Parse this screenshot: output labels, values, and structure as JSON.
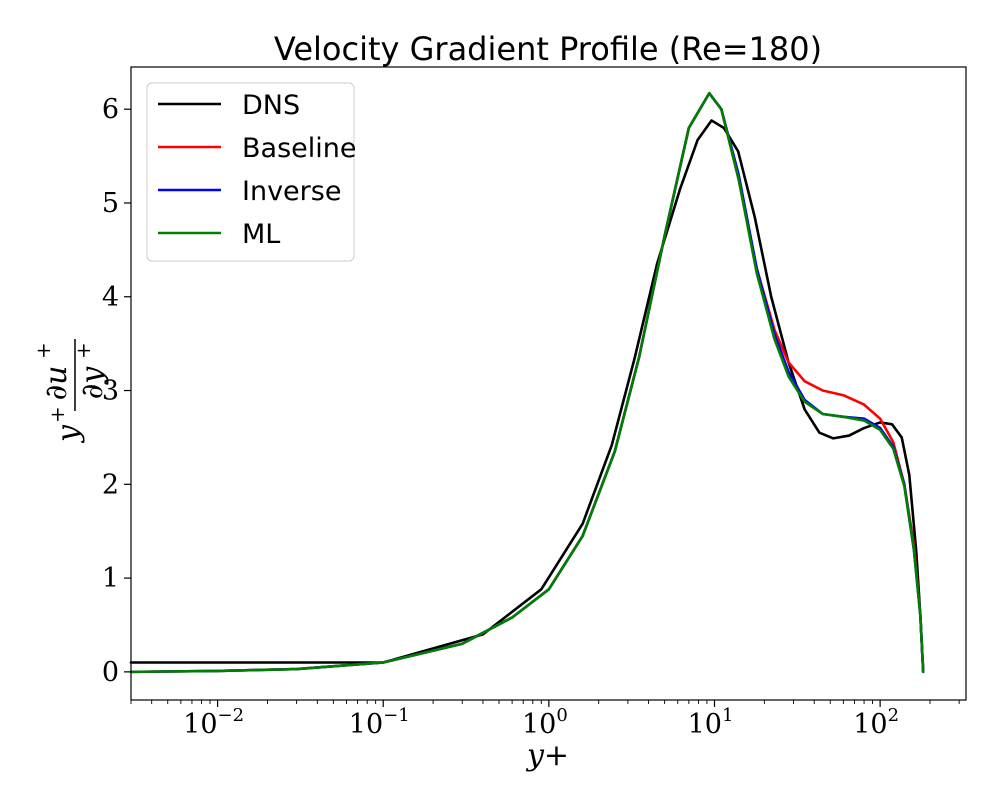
{
  "chart_data": {
    "type": "line",
    "title": "Velocity Gradient Profile (Re=180)",
    "xlabel": "y+",
    "ylabel_parts": {
      "y": "y",
      "sup1": "+",
      "num": "∂u",
      "sup2": "+",
      "den": "∂y",
      "sup3": "+"
    },
    "xscale": "log",
    "xlim": [
      0.003,
      330
    ],
    "ylim": [
      -0.3,
      6.45
    ],
    "x_ticks": [
      {
        "value": 0.01,
        "base": "10",
        "exp": "−2"
      },
      {
        "value": 0.1,
        "base": "10",
        "exp": "−1"
      },
      {
        "value": 1,
        "base": "10",
        "exp": "0"
      },
      {
        "value": 10,
        "base": "10",
        "exp": "1"
      },
      {
        "value": 100,
        "base": "10",
        "exp": "2"
      }
    ],
    "y_ticks": [
      {
        "value": 0,
        "label": "0"
      },
      {
        "value": 1,
        "label": "1"
      },
      {
        "value": 2,
        "label": "2"
      },
      {
        "value": 3,
        "label": "3"
      },
      {
        "value": 4,
        "label": "4"
      },
      {
        "value": 5,
        "label": "5"
      },
      {
        "value": 6,
        "label": "6"
      }
    ],
    "legend_position": "top-left",
    "grid": false,
    "series": [
      {
        "name": "DNS",
        "color": "#000000",
        "points": [
          [
            0.003,
            0.1
          ],
          [
            0.1,
            0.1
          ],
          [
            0.4,
            0.4
          ],
          [
            0.9,
            0.88
          ],
          [
            1.6,
            1.58
          ],
          [
            2.4,
            2.42
          ],
          [
            3.3,
            3.35
          ],
          [
            4.5,
            4.35
          ],
          [
            6.2,
            5.15
          ],
          [
            7.9,
            5.67
          ],
          [
            9.6,
            5.88
          ],
          [
            11.4,
            5.8
          ],
          [
            13.9,
            5.55
          ],
          [
            17.5,
            4.85
          ],
          [
            22,
            4.0
          ],
          [
            28,
            3.3
          ],
          [
            35,
            2.8
          ],
          [
            43,
            2.55
          ],
          [
            52,
            2.49
          ],
          [
            65,
            2.52
          ],
          [
            80,
            2.6
          ],
          [
            100,
            2.66
          ],
          [
            118,
            2.64
          ],
          [
            135,
            2.5
          ],
          [
            150,
            2.1
          ],
          [
            165,
            1.3
          ],
          [
            175,
            0.6
          ],
          [
            182,
            0.0
          ]
        ]
      },
      {
        "name": "Baseline",
        "color": "#ff0000",
        "points": [
          [
            0.003,
            0.0
          ],
          [
            0.01,
            0.01
          ],
          [
            0.03,
            0.03
          ],
          [
            0.1,
            0.1
          ],
          [
            0.3,
            0.3
          ],
          [
            0.6,
            0.58
          ],
          [
            1,
            0.88
          ],
          [
            1.6,
            1.45
          ],
          [
            2.5,
            2.35
          ],
          [
            3.5,
            3.35
          ],
          [
            5,
            4.65
          ],
          [
            7,
            5.8
          ],
          [
            9.3,
            6.17
          ],
          [
            11,
            6.0
          ],
          [
            14,
            5.25
          ],
          [
            18,
            4.3
          ],
          [
            23,
            3.65
          ],
          [
            28,
            3.3
          ],
          [
            35,
            3.1
          ],
          [
            45,
            3.0
          ],
          [
            60,
            2.95
          ],
          [
            80,
            2.85
          ],
          [
            100,
            2.7
          ],
          [
            120,
            2.45
          ],
          [
            140,
            2.0
          ],
          [
            160,
            1.35
          ],
          [
            175,
            0.6
          ],
          [
            182,
            0.0
          ]
        ]
      },
      {
        "name": "Inverse",
        "color": "#0000ff",
        "points": [
          [
            0.003,
            0.0
          ],
          [
            0.01,
            0.01
          ],
          [
            0.03,
            0.03
          ],
          [
            0.1,
            0.1
          ],
          [
            0.3,
            0.3
          ],
          [
            0.6,
            0.58
          ],
          [
            1,
            0.88
          ],
          [
            1.6,
            1.45
          ],
          [
            2.5,
            2.35
          ],
          [
            3.5,
            3.35
          ],
          [
            5,
            4.65
          ],
          [
            7,
            5.8
          ],
          [
            9.3,
            6.17
          ],
          [
            11,
            6.0
          ],
          [
            14,
            5.3
          ],
          [
            18,
            4.3
          ],
          [
            23,
            3.6
          ],
          [
            28,
            3.2
          ],
          [
            35,
            2.9
          ],
          [
            45,
            2.75
          ],
          [
            60,
            2.72
          ],
          [
            80,
            2.7
          ],
          [
            100,
            2.6
          ],
          [
            120,
            2.4
          ],
          [
            140,
            2.0
          ],
          [
            160,
            1.3
          ],
          [
            175,
            0.6
          ],
          [
            182,
            0.0
          ]
        ]
      },
      {
        "name": "ML",
        "color": "#008000",
        "points": [
          [
            0.003,
            0.0
          ],
          [
            0.01,
            0.01
          ],
          [
            0.03,
            0.03
          ],
          [
            0.1,
            0.1
          ],
          [
            0.3,
            0.3
          ],
          [
            0.6,
            0.58
          ],
          [
            1,
            0.88
          ],
          [
            1.6,
            1.45
          ],
          [
            2.5,
            2.35
          ],
          [
            3.5,
            3.35
          ],
          [
            5,
            4.65
          ],
          [
            7,
            5.8
          ],
          [
            9.3,
            6.17
          ],
          [
            11,
            6.0
          ],
          [
            14,
            5.25
          ],
          [
            18,
            4.25
          ],
          [
            23,
            3.55
          ],
          [
            28,
            3.15
          ],
          [
            35,
            2.88
          ],
          [
            45,
            2.75
          ],
          [
            60,
            2.72
          ],
          [
            80,
            2.68
          ],
          [
            100,
            2.58
          ],
          [
            120,
            2.38
          ],
          [
            140,
            1.98
          ],
          [
            160,
            1.3
          ],
          [
            175,
            0.6
          ],
          [
            182,
            0.0
          ]
        ]
      }
    ]
  }
}
